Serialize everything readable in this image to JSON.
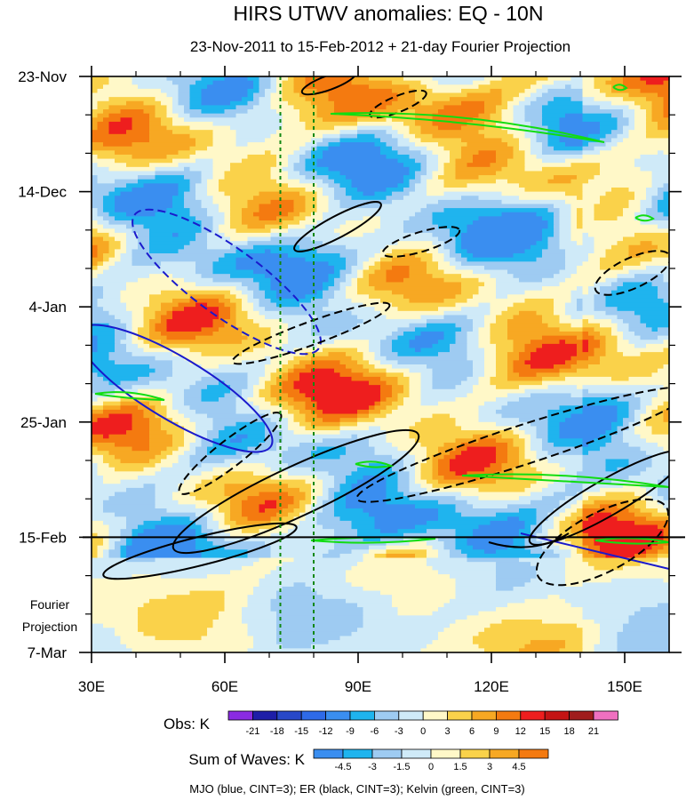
{
  "chart_data": {
    "type": "heatmap",
    "title": "HIRS UTWV anomalies: EQ - 10N",
    "subtitle": "23-Nov-2011 to 15-Feb-2012 + 21-day Fourier Projection",
    "x_tick_labels": [
      "30E",
      "60E",
      "90E",
      "120E",
      "150E"
    ],
    "x_ticks": [
      30,
      60,
      90,
      120,
      150
    ],
    "xlim": [
      30,
      160
    ],
    "y_tick_labels": [
      "23-Nov",
      "14-Dec",
      "4-Jan",
      "25-Jan",
      "15-Feb",
      "7-Mar"
    ],
    "y_ticks_day": [
      0,
      21,
      42,
      63,
      84,
      105
    ],
    "ylim_day": [
      0,
      105
    ],
    "projection_start_day": 84,
    "projection_label": [
      "Fourier",
      "Projection"
    ],
    "reference_longitudes": [
      72.5,
      80
    ],
    "obs_colorbar": {
      "label": "Obs: K",
      "levels": [
        "-21",
        "-18",
        "-15",
        "-12",
        "-9",
        "-6",
        "-3",
        "0",
        "3",
        "6",
        "9",
        "12",
        "15",
        "18",
        "21"
      ],
      "colors": [
        "#8a2be2",
        "#1e1ea8",
        "#2848c8",
        "#2e6ae8",
        "#3a8ef0",
        "#1fb4ee",
        "#9ecbf2",
        "#cfeaf8",
        "#fff8c8",
        "#fad24a",
        "#f7a823",
        "#f47a10",
        "#ee1e1e",
        "#c41414",
        "#a01c1c",
        "#f070c0"
      ]
    },
    "waves_colorbar": {
      "label": "Sum of Waves: K",
      "levels": [
        "-4.5",
        "-3",
        "-1.5",
        "0",
        "1.5",
        "3",
        "4.5"
      ],
      "colors": [
        "#3a8ef0",
        "#1fb4ee",
        "#9ecbf2",
        "#cfeaf8",
        "#fff8c8",
        "#fad24a",
        "#f7a823",
        "#f47a10"
      ]
    },
    "footnote": "MJO (blue, CINT=3); ER (black, CINT=3); Kelvin (green, CINT=3)",
    "wave_colors": {
      "MJO": "#1a1acc",
      "ER": "#000000",
      "Kelvin": "#11dd11"
    }
  }
}
